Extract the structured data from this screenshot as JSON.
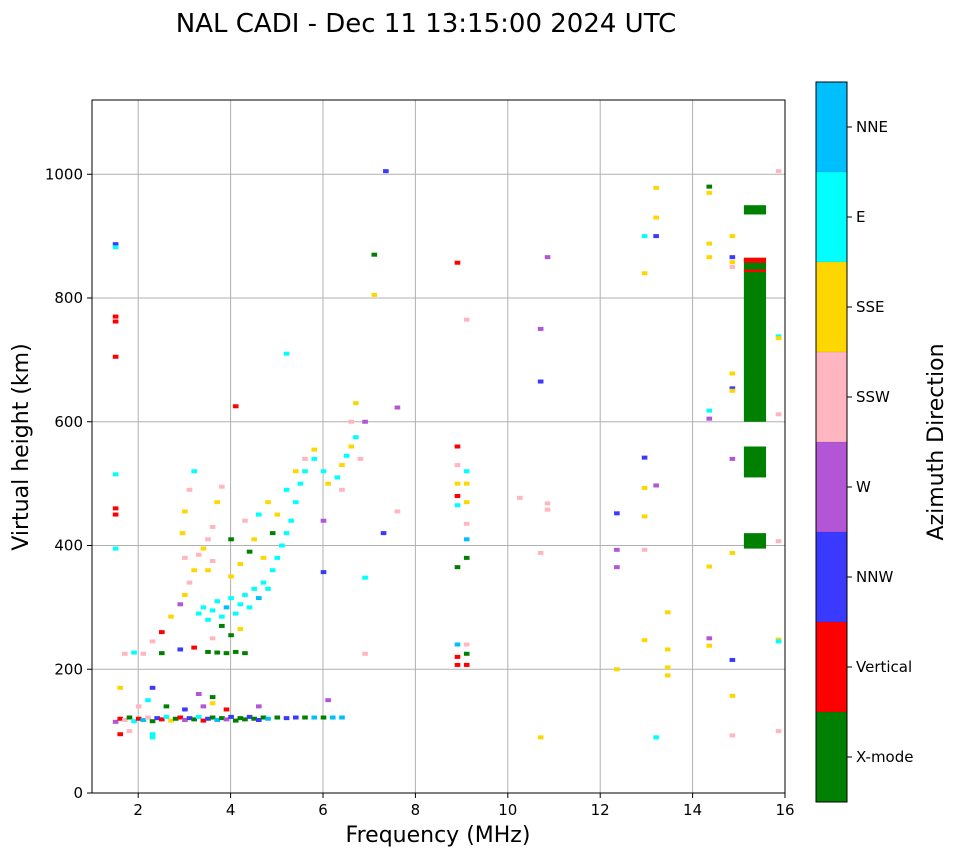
{
  "chart_data": {
    "type": "scatter",
    "title": "NAL CADI - Dec 11 13:15:00 2024 UTC",
    "xlabel": "Frequency (MHz)",
    "ylabel": "Virtual height (km)",
    "xlim": [
      1,
      16
    ],
    "ylim": [
      0,
      1120
    ],
    "xticks": [
      2,
      4,
      6,
      8,
      10,
      12,
      14,
      16
    ],
    "yticks": [
      0,
      200,
      400,
      600,
      800,
      1000
    ],
    "grid": true,
    "colorbar": {
      "label": "Azimuth Direction",
      "categories": [
        {
          "name": "X-mode",
          "color": "#008000"
        },
        {
          "name": "Vertical",
          "color": "#ff0000"
        },
        {
          "name": "NNW",
          "color": "#3a3aff"
        },
        {
          "name": "W",
          "color": "#b256d6"
        },
        {
          "name": "SSW",
          "color": "#ffb6c1"
        },
        {
          "name": "SSE",
          "color": "#ffd700"
        },
        {
          "name": "E",
          "color": "#00ffff"
        },
        {
          "name": "NNE",
          "color": "#00bfff"
        }
      ]
    },
    "echoes": [
      {
        "f": 1.5,
        "h": 115,
        "d": "W"
      },
      {
        "f": 1.6,
        "h": 120,
        "d": "Vertical"
      },
      {
        "f": 1.7,
        "h": 118,
        "d": "SSW"
      },
      {
        "f": 1.8,
        "h": 122,
        "d": "X-mode"
      },
      {
        "f": 1.9,
        "h": 116,
        "d": "E"
      },
      {
        "f": 2.0,
        "h": 120,
        "d": "Vertical"
      },
      {
        "f": 2.1,
        "h": 118,
        "d": "NNE"
      },
      {
        "f": 2.2,
        "h": 122,
        "d": "SSW"
      },
      {
        "f": 2.3,
        "h": 116,
        "d": "X-mode"
      },
      {
        "f": 2.4,
        "h": 121,
        "d": "NNW"
      },
      {
        "f": 2.5,
        "h": 119,
        "d": "Vertical"
      },
      {
        "f": 2.6,
        "h": 123,
        "d": "E"
      },
      {
        "f": 2.7,
        "h": 117,
        "d": "SSE"
      },
      {
        "f": 2.8,
        "h": 120,
        "d": "X-mode"
      },
      {
        "f": 2.9,
        "h": 122,
        "d": "Vertical"
      },
      {
        "f": 3.0,
        "h": 118,
        "d": "W"
      },
      {
        "f": 3.1,
        "h": 121,
        "d": "NNW"
      },
      {
        "f": 3.2,
        "h": 119,
        "d": "X-mode"
      },
      {
        "f": 3.3,
        "h": 123,
        "d": "E"
      },
      {
        "f": 3.4,
        "h": 117,
        "d": "Vertical"
      },
      {
        "f": 3.5,
        "h": 120,
        "d": "NNW"
      },
      {
        "f": 3.6,
        "h": 122,
        "d": "X-mode"
      },
      {
        "f": 3.7,
        "h": 118,
        "d": "NNE"
      },
      {
        "f": 3.8,
        "h": 121,
        "d": "X-mode"
      },
      {
        "f": 3.9,
        "h": 119,
        "d": "W"
      },
      {
        "f": 4.0,
        "h": 123,
        "d": "NNW"
      },
      {
        "f": 4.1,
        "h": 117,
        "d": "X-mode"
      },
      {
        "f": 4.2,
        "h": 121,
        "d": "X-mode"
      },
      {
        "f": 4.3,
        "h": 119,
        "d": "X-mode"
      },
      {
        "f": 4.4,
        "h": 123,
        "d": "NNW"
      },
      {
        "f": 4.5,
        "h": 120,
        "d": "X-mode"
      },
      {
        "f": 4.6,
        "h": 118,
        "d": "NNW"
      },
      {
        "f": 4.7,
        "h": 122,
        "d": "X-mode"
      },
      {
        "f": 4.8,
        "h": 120,
        "d": "NNE"
      },
      {
        "f": 5.0,
        "h": 122,
        "d": "X-mode"
      },
      {
        "f": 5.2,
        "h": 121,
        "d": "NNW"
      },
      {
        "f": 5.4,
        "h": 122,
        "d": "NNW"
      },
      {
        "f": 5.6,
        "h": 122,
        "d": "X-mode"
      },
      {
        "f": 5.8,
        "h": 122,
        "d": "NNE"
      },
      {
        "f": 6.0,
        "h": 122,
        "d": "X-mode"
      },
      {
        "f": 6.2,
        "h": 122,
        "d": "NNE"
      },
      {
        "f": 6.4,
        "h": 122,
        "d": "NNE"
      },
      {
        "f": 1.6,
        "h": 95,
        "d": "Vertical"
      },
      {
        "f": 1.8,
        "h": 100,
        "d": "SSW"
      },
      {
        "f": 2.3,
        "h": 95,
        "d": "E"
      },
      {
        "f": 2.3,
        "h": 90,
        "d": "E"
      },
      {
        "f": 2.0,
        "h": 140,
        "d": "SSW"
      },
      {
        "f": 2.2,
        "h": 150,
        "d": "E"
      },
      {
        "f": 2.6,
        "h": 140,
        "d": "X-mode"
      },
      {
        "f": 3.0,
        "h": 135,
        "d": "NNW"
      },
      {
        "f": 3.4,
        "h": 140,
        "d": "W"
      },
      {
        "f": 3.6,
        "h": 145,
        "d": "SSE"
      },
      {
        "f": 3.9,
        "h": 135,
        "d": "Vertical"
      },
      {
        "f": 4.6,
        "h": 140,
        "d": "W"
      },
      {
        "f": 6.1,
        "h": 150,
        "d": "W"
      },
      {
        "f": 1.6,
        "h": 170,
        "d": "SSE"
      },
      {
        "f": 2.3,
        "h": 170,
        "d": "NNW"
      },
      {
        "f": 3.3,
        "h": 160,
        "d": "W"
      },
      {
        "f": 3.6,
        "h": 155,
        "d": "X-mode"
      },
      {
        "f": 1.7,
        "h": 225,
        "d": "SSW"
      },
      {
        "f": 1.9,
        "h": 227,
        "d": "E"
      },
      {
        "f": 2.1,
        "h": 225,
        "d": "SSW"
      },
      {
        "f": 2.5,
        "h": 226,
        "d": "X-mode"
      },
      {
        "f": 2.9,
        "h": 232,
        "d": "NNW"
      },
      {
        "f": 3.2,
        "h": 235,
        "d": "Vertical"
      },
      {
        "f": 3.5,
        "h": 228,
        "d": "X-mode"
      },
      {
        "f": 3.7,
        "h": 227,
        "d": "X-mode"
      },
      {
        "f": 3.9,
        "h": 226,
        "d": "X-mode"
      },
      {
        "f": 4.1,
        "h": 228,
        "d": "X-mode"
      },
      {
        "f": 4.3,
        "h": 226,
        "d": "X-mode"
      },
      {
        "f": 2.3,
        "h": 245,
        "d": "SSW"
      },
      {
        "f": 2.5,
        "h": 260,
        "d": "Vertical"
      },
      {
        "f": 2.7,
        "h": 285,
        "d": "SSE"
      },
      {
        "f": 2.9,
        "h": 305,
        "d": "W"
      },
      {
        "f": 3.0,
        "h": 320,
        "d": "SSE"
      },
      {
        "f": 3.1,
        "h": 340,
        "d": "SSW"
      },
      {
        "f": 3.2,
        "h": 360,
        "d": "SSE"
      },
      {
        "f": 3.0,
        "h": 380,
        "d": "SSW"
      },
      {
        "f": 2.95,
        "h": 420,
        "d": "SSE"
      },
      {
        "f": 3.0,
        "h": 455,
        "d": "SSE"
      },
      {
        "f": 3.1,
        "h": 490,
        "d": "SSW"
      },
      {
        "f": 3.2,
        "h": 520,
        "d": "E"
      },
      {
        "f": 3.3,
        "h": 385,
        "d": "SSW"
      },
      {
        "f": 3.4,
        "h": 395,
        "d": "SSE"
      },
      {
        "f": 3.5,
        "h": 410,
        "d": "SSW"
      },
      {
        "f": 3.6,
        "h": 430,
        "d": "SSW"
      },
      {
        "f": 3.7,
        "h": 470,
        "d": "SSE"
      },
      {
        "f": 3.8,
        "h": 495,
        "d": "SSW"
      },
      {
        "f": 3.5,
        "h": 360,
        "d": "SSE"
      },
      {
        "f": 3.6,
        "h": 375,
        "d": "SSW"
      },
      {
        "f": 3.3,
        "h": 290,
        "d": "E"
      },
      {
        "f": 3.4,
        "h": 300,
        "d": "E"
      },
      {
        "f": 3.5,
        "h": 280,
        "d": "E"
      },
      {
        "f": 3.6,
        "h": 295,
        "d": "E"
      },
      {
        "f": 3.7,
        "h": 310,
        "d": "E"
      },
      {
        "f": 3.8,
        "h": 285,
        "d": "E"
      },
      {
        "f": 3.9,
        "h": 300,
        "d": "NNE"
      },
      {
        "f": 4.0,
        "h": 315,
        "d": "E"
      },
      {
        "f": 4.1,
        "h": 290,
        "d": "E"
      },
      {
        "f": 4.2,
        "h": 305,
        "d": "E"
      },
      {
        "f": 4.3,
        "h": 320,
        "d": "E"
      },
      {
        "f": 4.4,
        "h": 300,
        "d": "E"
      },
      {
        "f": 4.5,
        "h": 330,
        "d": "E"
      },
      {
        "f": 4.6,
        "h": 315,
        "d": "NNE"
      },
      {
        "f": 4.7,
        "h": 340,
        "d": "E"
      },
      {
        "f": 4.8,
        "h": 330,
        "d": "E"
      },
      {
        "f": 4.9,
        "h": 360,
        "d": "E"
      },
      {
        "f": 5.0,
        "h": 380,
        "d": "E"
      },
      {
        "f": 5.1,
        "h": 400,
        "d": "E"
      },
      {
        "f": 5.2,
        "h": 420,
        "d": "E"
      },
      {
        "f": 5.3,
        "h": 440,
        "d": "E"
      },
      {
        "f": 5.4,
        "h": 470,
        "d": "E"
      },
      {
        "f": 5.5,
        "h": 500,
        "d": "E"
      },
      {
        "f": 5.6,
        "h": 520,
        "d": "E"
      },
      {
        "f": 5.8,
        "h": 540,
        "d": "E"
      },
      {
        "f": 4.0,
        "h": 350,
        "d": "SSE"
      },
      {
        "f": 4.2,
        "h": 370,
        "d": "SSE"
      },
      {
        "f": 4.4,
        "h": 390,
        "d": "X-mode"
      },
      {
        "f": 4.5,
        "h": 410,
        "d": "SSE"
      },
      {
        "f": 4.7,
        "h": 380,
        "d": "SSE"
      },
      {
        "f": 4.3,
        "h": 440,
        "d": "SSW"
      },
      {
        "f": 4.6,
        "h": 450,
        "d": "E"
      },
      {
        "f": 4.8,
        "h": 470,
        "d": "SSE"
      },
      {
        "f": 4.9,
        "h": 420,
        "d": "X-mode"
      },
      {
        "f": 3.8,
        "h": 270,
        "d": "X-mode"
      },
      {
        "f": 4.0,
        "h": 255,
        "d": "X-mode"
      },
      {
        "f": 4.2,
        "h": 265,
        "d": "SSE"
      },
      {
        "f": 3.6,
        "h": 250,
        "d": "SSW"
      },
      {
        "f": 4.0,
        "h": 410,
        "d": "X-mode"
      },
      {
        "f": 5.0,
        "h": 450,
        "d": "SSE"
      },
      {
        "f": 5.2,
        "h": 490,
        "d": "E"
      },
      {
        "f": 5.4,
        "h": 520,
        "d": "SSE"
      },
      {
        "f": 5.6,
        "h": 540,
        "d": "SSW"
      },
      {
        "f": 5.8,
        "h": 555,
        "d": "SSE"
      },
      {
        "f": 6.0,
        "h": 520,
        "d": "E"
      },
      {
        "f": 6.1,
        "h": 500,
        "d": "SSE"
      },
      {
        "f": 6.3,
        "h": 510,
        "d": "E"
      },
      {
        "f": 6.4,
        "h": 530,
        "d": "SSE"
      },
      {
        "f": 6.5,
        "h": 545,
        "d": "E"
      },
      {
        "f": 6.6,
        "h": 560,
        "d": "SSE"
      },
      {
        "f": 6.7,
        "h": 575,
        "d": "E"
      },
      {
        "f": 6.6,
        "h": 600,
        "d": "SSW"
      },
      {
        "f": 6.7,
        "h": 630,
        "d": "SSE"
      },
      {
        "f": 6.8,
        "h": 540,
        "d": "SSW"
      },
      {
        "f": 6.4,
        "h": 490,
        "d": "SSW"
      },
      {
        "f": 6.9,
        "h": 600,
        "d": "W"
      },
      {
        "f": 6.0,
        "h": 440,
        "d": "W"
      },
      {
        "f": 6.0,
        "h": 357,
        "d": "NNW"
      },
      {
        "f": 6.9,
        "h": 348,
        "d": "E"
      },
      {
        "f": 7.3,
        "h": 420,
        "d": "NNW"
      },
      {
        "f": 7.6,
        "h": 455,
        "d": "SSW"
      },
      {
        "f": 7.6,
        "h": 623,
        "d": "W"
      },
      {
        "f": 6.9,
        "h": 225,
        "d": "SSW"
      },
      {
        "f": 5.2,
        "h": 710,
        "d": "E"
      },
      {
        "f": 4.1,
        "h": 625,
        "d": "Vertical"
      },
      {
        "f": 7.1,
        "h": 870,
        "d": "X-mode"
      },
      {
        "f": 7.1,
        "h": 805,
        "d": "SSE"
      },
      {
        "f": 7.35,
        "h": 1005,
        "d": "NNW"
      },
      {
        "f": 1.5,
        "h": 887,
        "d": "NNW"
      },
      {
        "f": 1.5,
        "h": 882,
        "d": "E"
      },
      {
        "f": 1.5,
        "h": 770,
        "d": "Vertical"
      },
      {
        "f": 1.5,
        "h": 762,
        "d": "Vertical"
      },
      {
        "f": 1.5,
        "h": 705,
        "d": "Vertical"
      },
      {
        "f": 1.5,
        "h": 515,
        "d": "E"
      },
      {
        "f": 1.5,
        "h": 460,
        "d": "Vertical"
      },
      {
        "f": 1.5,
        "h": 450,
        "d": "Vertical"
      },
      {
        "f": 1.5,
        "h": 395,
        "d": "E"
      },
      {
        "f": 8.9,
        "h": 857,
        "d": "Vertical"
      },
      {
        "f": 8.9,
        "h": 560,
        "d": "Vertical"
      },
      {
        "f": 8.9,
        "h": 530,
        "d": "SSW"
      },
      {
        "f": 8.9,
        "h": 500,
        "d": "SSE"
      },
      {
        "f": 8.9,
        "h": 480,
        "d": "Vertical"
      },
      {
        "f": 8.9,
        "h": 465,
        "d": "E"
      },
      {
        "f": 8.9,
        "h": 365,
        "d": "X-mode"
      },
      {
        "f": 8.9,
        "h": 240,
        "d": "NNE"
      },
      {
        "f": 8.9,
        "h": 220,
        "d": "Vertical"
      },
      {
        "f": 8.9,
        "h": 207,
        "d": "Vertical"
      },
      {
        "f": 9.1,
        "h": 765,
        "d": "SSW"
      },
      {
        "f": 9.1,
        "h": 520,
        "d": "E"
      },
      {
        "f": 9.1,
        "h": 500,
        "d": "SSE"
      },
      {
        "f": 9.1,
        "h": 470,
        "d": "SSE"
      },
      {
        "f": 9.1,
        "h": 435,
        "d": "SSW"
      },
      {
        "f": 9.1,
        "h": 410,
        "d": "NNE"
      },
      {
        "f": 9.1,
        "h": 380,
        "d": "X-mode"
      },
      {
        "f": 9.1,
        "h": 240,
        "d": "SSW"
      },
      {
        "f": 9.1,
        "h": 225,
        "d": "X-mode"
      },
      {
        "f": 9.1,
        "h": 207,
        "d": "Vertical"
      },
      {
        "f": 10.25,
        "h": 477,
        "d": "SSW"
      },
      {
        "f": 10.7,
        "h": 750,
        "d": "W"
      },
      {
        "f": 10.7,
        "h": 665,
        "d": "NNW"
      },
      {
        "f": 10.7,
        "h": 388,
        "d": "SSW"
      },
      {
        "f": 10.7,
        "h": 90,
        "d": "SSE"
      },
      {
        "f": 10.85,
        "h": 866,
        "d": "W"
      },
      {
        "f": 10.85,
        "h": 468,
        "d": "SSW"
      },
      {
        "f": 10.85,
        "h": 458,
        "d": "SSW"
      },
      {
        "f": 12.35,
        "h": 452,
        "d": "NNW"
      },
      {
        "f": 12.35,
        "h": 393,
        "d": "W"
      },
      {
        "f": 12.35,
        "h": 365,
        "d": "W"
      },
      {
        "f": 12.35,
        "h": 200,
        "d": "SSE"
      },
      {
        "f": 12.95,
        "h": 900,
        "d": "E"
      },
      {
        "f": 12.95,
        "h": 840,
        "d": "SSE"
      },
      {
        "f": 12.95,
        "h": 542,
        "d": "NNW"
      },
      {
        "f": 12.95,
        "h": 493,
        "d": "SSE"
      },
      {
        "f": 12.95,
        "h": 447,
        "d": "SSE"
      },
      {
        "f": 12.95,
        "h": 393,
        "d": "SSW"
      },
      {
        "f": 12.95,
        "h": 247,
        "d": "SSE"
      },
      {
        "f": 13.2,
        "h": 978,
        "d": "SSE"
      },
      {
        "f": 13.2,
        "h": 930,
        "d": "SSE"
      },
      {
        "f": 13.2,
        "h": 900,
        "d": "NNW"
      },
      {
        "f": 13.2,
        "h": 497,
        "d": "W"
      },
      {
        "f": 13.2,
        "h": 90,
        "d": "E"
      },
      {
        "f": 13.45,
        "h": 292,
        "d": "SSE"
      },
      {
        "f": 13.45,
        "h": 232,
        "d": "SSE"
      },
      {
        "f": 13.45,
        "h": 203,
        "d": "SSE"
      },
      {
        "f": 13.45,
        "h": 190,
        "d": "SSE"
      },
      {
        "f": 14.35,
        "h": 980,
        "d": "X-mode"
      },
      {
        "f": 14.35,
        "h": 970,
        "d": "SSE"
      },
      {
        "f": 14.35,
        "h": 888,
        "d": "SSE"
      },
      {
        "f": 14.35,
        "h": 866,
        "d": "SSE"
      },
      {
        "f": 14.35,
        "h": 618,
        "d": "E"
      },
      {
        "f": 14.35,
        "h": 605,
        "d": "W"
      },
      {
        "f": 14.35,
        "h": 366,
        "d": "SSE"
      },
      {
        "f": 14.35,
        "h": 250,
        "d": "W"
      },
      {
        "f": 14.35,
        "h": 238,
        "d": "SSE"
      },
      {
        "f": 14.85,
        "h": 900,
        "d": "SSE"
      },
      {
        "f": 14.85,
        "h": 866,
        "d": "NNW"
      },
      {
        "f": 14.85,
        "h": 858,
        "d": "SSE"
      },
      {
        "f": 14.85,
        "h": 850,
        "d": "SSW"
      },
      {
        "f": 14.85,
        "h": 678,
        "d": "SSE"
      },
      {
        "f": 14.85,
        "h": 654,
        "d": "NNW"
      },
      {
        "f": 14.85,
        "h": 650,
        "d": "SSE"
      },
      {
        "f": 14.85,
        "h": 540,
        "d": "W"
      },
      {
        "f": 14.85,
        "h": 388,
        "d": "SSE"
      },
      {
        "f": 14.85,
        "h": 215,
        "d": "NNW"
      },
      {
        "f": 14.85,
        "h": 157,
        "d": "SSE"
      },
      {
        "f": 14.85,
        "h": 93,
        "d": "SSW"
      },
      {
        "f": 15.85,
        "h": 1005,
        "d": "SSW"
      },
      {
        "f": 15.85,
        "h": 738,
        "d": "E"
      },
      {
        "f": 15.85,
        "h": 735,
        "d": "SSE"
      },
      {
        "f": 15.85,
        "h": 612,
        "d": "SSW"
      },
      {
        "f": 15.85,
        "h": 407,
        "d": "SSW"
      },
      {
        "f": 15.85,
        "h": 248,
        "d": "SSE"
      },
      {
        "f": 15.85,
        "h": 245,
        "d": "E"
      },
      {
        "f": 15.85,
        "h": 100,
        "d": "SSW"
      }
    ],
    "blocks": [
      {
        "f": 15.35,
        "h0": 935,
        "h1": 950,
        "d": "X-mode"
      },
      {
        "f": 15.35,
        "h0": 600,
        "h1": 865,
        "d": "X-mode"
      },
      {
        "f": 15.35,
        "h0": 857,
        "h1": 865,
        "d": "Vertical"
      },
      {
        "f": 15.35,
        "h0": 842,
        "h1": 846,
        "d": "Vertical"
      },
      {
        "f": 15.35,
        "h0": 510,
        "h1": 560,
        "d": "X-mode"
      },
      {
        "f": 15.35,
        "h0": 395,
        "h1": 420,
        "d": "X-mode"
      }
    ]
  }
}
